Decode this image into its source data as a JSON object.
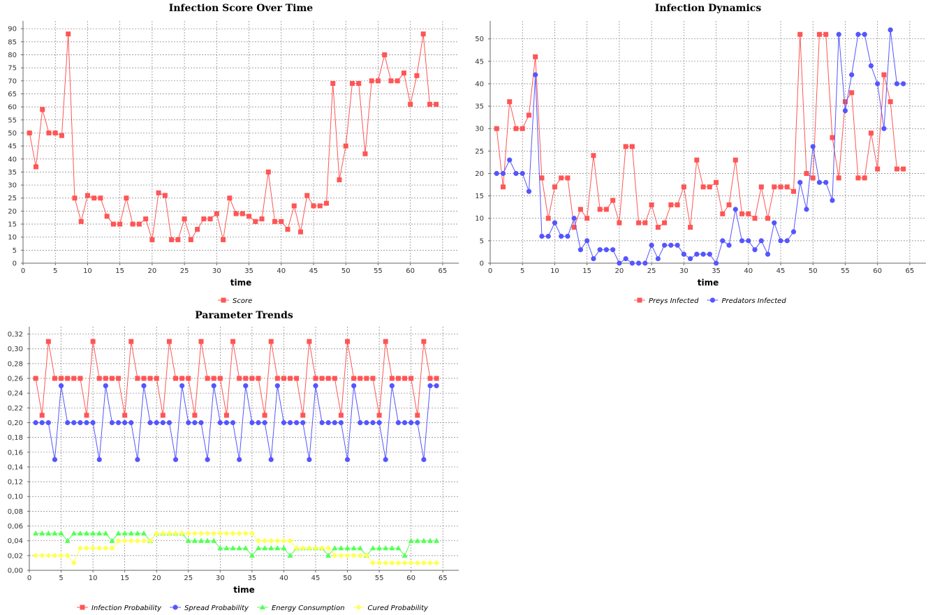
{
  "chart_data": [
    {
      "type": "line",
      "title": "Infection Score Over Time",
      "xlabel": "time",
      "ylabel": "",
      "xlim": [
        0,
        67.5
      ],
      "ylim": [
        0,
        93
      ],
      "xticks": [
        0,
        5,
        10,
        15,
        20,
        25,
        30,
        35,
        40,
        45,
        50,
        55,
        60,
        65
      ],
      "yticks": [
        0,
        5,
        10,
        15,
        20,
        25,
        30,
        35,
        40,
        45,
        50,
        55,
        60,
        65,
        70,
        75,
        80,
        85,
        90
      ],
      "y_decimals": 0,
      "grid": true,
      "legend": "bottom",
      "x": [
        1,
        2,
        3,
        4,
        5,
        6,
        7,
        8,
        9,
        10,
        11,
        12,
        13,
        14,
        15,
        16,
        17,
        18,
        19,
        20,
        21,
        22,
        23,
        24,
        25,
        26,
        27,
        28,
        29,
        30,
        31,
        32,
        33,
        34,
        35,
        36,
        37,
        38,
        39,
        40,
        41,
        42,
        43,
        44,
        45,
        46,
        47,
        48,
        49,
        50,
        51,
        52,
        53,
        54,
        55,
        56,
        57,
        58,
        59,
        60,
        61,
        62,
        63,
        64
      ],
      "series": [
        {
          "name": "Score",
          "color": "#FF5555",
          "marker": "square",
          "values": [
            50,
            37,
            59,
            50,
            50,
            49,
            88,
            25,
            16,
            26,
            25,
            25,
            18,
            15,
            15,
            25,
            15,
            15,
            17,
            9,
            27,
            26,
            9,
            9,
            17,
            9,
            13,
            17,
            17,
            19,
            9,
            25,
            19,
            19,
            18,
            16,
            17,
            35,
            16,
            16,
            13,
            22,
            12,
            26,
            22,
            22,
            23,
            69,
            32,
            45,
            69,
            69,
            42,
            70,
            70,
            80,
            70,
            70,
            73,
            61,
            72,
            88,
            61,
            61
          ]
        }
      ]
    },
    {
      "type": "line",
      "title": "Infection Dynamics",
      "xlabel": "time",
      "ylabel": "",
      "xlim": [
        0,
        67.5
      ],
      "ylim": [
        0,
        54
      ],
      "xticks": [
        0,
        5,
        10,
        15,
        20,
        25,
        30,
        35,
        40,
        45,
        50,
        55,
        60,
        65
      ],
      "yticks": [
        0,
        5,
        10,
        15,
        20,
        25,
        30,
        35,
        40,
        45,
        50
      ],
      "y_decimals": 0,
      "grid": true,
      "legend": "bottom",
      "x": [
        1,
        2,
        3,
        4,
        5,
        6,
        7,
        8,
        9,
        10,
        11,
        12,
        13,
        14,
        15,
        16,
        17,
        18,
        19,
        20,
        21,
        22,
        23,
        24,
        25,
        26,
        27,
        28,
        29,
        30,
        31,
        32,
        33,
        34,
        35,
        36,
        37,
        38,
        39,
        40,
        41,
        42,
        43,
        44,
        45,
        46,
        47,
        48,
        49,
        50,
        51,
        52,
        53,
        54,
        55,
        56,
        57,
        58,
        59,
        60,
        61,
        62,
        63,
        64
      ],
      "series": [
        {
          "name": "Preys Infected",
          "color": "#FF5555",
          "marker": "square",
          "values": [
            30,
            17,
            36,
            30,
            30,
            33,
            46,
            19,
            10,
            17,
            19,
            19,
            8,
            12,
            10,
            24,
            12,
            12,
            14,
            9,
            26,
            26,
            9,
            9,
            13,
            8,
            9,
            13,
            13,
            17,
            8,
            23,
            17,
            17,
            18,
            11,
            13,
            23,
            11,
            11,
            10,
            17,
            10,
            17,
            17,
            17,
            16,
            51,
            20,
            19,
            51,
            51,
            28,
            19,
            36,
            38,
            19,
            19,
            29,
            21,
            42,
            36,
            21,
            21
          ]
        },
        {
          "name": "Predators Infected",
          "color": "#5555FF",
          "marker": "circle",
          "values": [
            20,
            20,
            23,
            20,
            20,
            16,
            42,
            6,
            6,
            9,
            6,
            6,
            10,
            3,
            5,
            1,
            3,
            3,
            3,
            0,
            1,
            0,
            0,
            0,
            4,
            1,
            4,
            4,
            4,
            2,
            1,
            2,
            2,
            2,
            0,
            5,
            4,
            12,
            5,
            5,
            3,
            5,
            2,
            9,
            5,
            5,
            7,
            18,
            12,
            26,
            18,
            18,
            14,
            51,
            34,
            42,
            51,
            51,
            44,
            40,
            30,
            52,
            40,
            40
          ]
        }
      ]
    },
    {
      "type": "line",
      "title": "Parameter Trends",
      "xlabel": "time",
      "ylabel": "",
      "xlim": [
        0,
        67.5
      ],
      "ylim": [
        0,
        0.33
      ],
      "xticks": [
        0,
        5,
        10,
        15,
        20,
        25,
        30,
        35,
        40,
        45,
        50,
        55,
        60,
        65
      ],
      "yticks": [
        0,
        0.02,
        0.04,
        0.06,
        0.08,
        0.1,
        0.12,
        0.14,
        0.16,
        0.18,
        0.2,
        0.22,
        0.24,
        0.26,
        0.28,
        0.3,
        0.32
      ],
      "y_decimals": 2,
      "decimal_separator": ",",
      "grid": true,
      "legend": "bottom",
      "x": [
        1,
        2,
        3,
        4,
        5,
        6,
        7,
        8,
        9,
        10,
        11,
        12,
        13,
        14,
        15,
        16,
        17,
        18,
        19,
        20,
        21,
        22,
        23,
        24,
        25,
        26,
        27,
        28,
        29,
        30,
        31,
        32,
        33,
        34,
        35,
        36,
        37,
        38,
        39,
        40,
        41,
        42,
        43,
        44,
        45,
        46,
        47,
        48,
        49,
        50,
        51,
        52,
        53,
        54,
        55,
        56,
        57,
        58,
        59,
        60,
        61,
        62,
        63,
        64
      ],
      "series": [
        {
          "name": "Infection Probability",
          "color": "#FF5555",
          "marker": "square",
          "values": [
            0.26,
            0.21,
            0.31,
            0.26,
            0.26,
            0.26,
            0.26,
            0.26,
            0.21,
            0.31,
            0.26,
            0.26,
            0.26,
            0.26,
            0.21,
            0.31,
            0.26,
            0.26,
            0.26,
            0.26,
            0.21,
            0.31,
            0.26,
            0.26,
            0.26,
            0.21,
            0.31,
            0.26,
            0.26,
            0.26,
            0.21,
            0.31,
            0.26,
            0.26,
            0.26,
            0.26,
            0.21,
            0.31,
            0.26,
            0.26,
            0.26,
            0.26,
            0.21,
            0.31,
            0.26,
            0.26,
            0.26,
            0.26,
            0.21,
            0.31,
            0.26,
            0.26,
            0.26,
            0.26,
            0.21,
            0.31,
            0.26,
            0.26,
            0.26,
            0.26,
            0.21,
            0.31,
            0.26,
            0.26
          ]
        },
        {
          "name": "Spread Probability",
          "color": "#5555FF",
          "marker": "circle",
          "values": [
            0.2,
            0.2,
            0.2,
            0.15,
            0.25,
            0.2,
            0.2,
            0.2,
            0.2,
            0.2,
            0.15,
            0.25,
            0.2,
            0.2,
            0.2,
            0.2,
            0.15,
            0.25,
            0.2,
            0.2,
            0.2,
            0.2,
            0.15,
            0.25,
            0.2,
            0.2,
            0.2,
            0.15,
            0.25,
            0.2,
            0.2,
            0.2,
            0.15,
            0.25,
            0.2,
            0.2,
            0.2,
            0.15,
            0.25,
            0.2,
            0.2,
            0.2,
            0.2,
            0.15,
            0.25,
            0.2,
            0.2,
            0.2,
            0.2,
            0.15,
            0.25,
            0.2,
            0.2,
            0.2,
            0.2,
            0.15,
            0.25,
            0.2,
            0.2,
            0.2,
            0.2,
            0.15,
            0.25,
            0.25
          ]
        },
        {
          "name": "Energy Consumption",
          "color": "#55FF55",
          "marker": "triangle",
          "values": [
            0.05,
            0.05,
            0.05,
            0.05,
            0.05,
            0.04,
            0.05,
            0.05,
            0.05,
            0.05,
            0.05,
            0.05,
            0.04,
            0.05,
            0.05,
            0.05,
            0.05,
            0.05,
            0.04,
            0.05,
            0.05,
            0.05,
            0.05,
            0.05,
            0.04,
            0.04,
            0.04,
            0.04,
            0.04,
            0.03,
            0.03,
            0.03,
            0.03,
            0.03,
            0.02,
            0.03,
            0.03,
            0.03,
            0.03,
            0.03,
            0.02,
            0.03,
            0.03,
            0.03,
            0.03,
            0.03,
            0.02,
            0.03,
            0.03,
            0.03,
            0.03,
            0.03,
            0.02,
            0.03,
            0.03,
            0.03,
            0.03,
            0.03,
            0.02,
            0.04,
            0.04,
            0.04,
            0.04,
            0.04
          ]
        },
        {
          "name": "Cured Probability",
          "color": "#FFFF55",
          "marker": "diamond",
          "values": [
            0.02,
            0.02,
            0.02,
            0.02,
            0.02,
            0.02,
            0.01,
            0.03,
            0.03,
            0.03,
            0.03,
            0.03,
            0.03,
            0.04,
            0.04,
            0.04,
            0.04,
            0.04,
            0.04,
            0.05,
            0.05,
            0.05,
            0.05,
            0.05,
            0.05,
            0.05,
            0.05,
            0.05,
            0.05,
            0.05,
            0.05,
            0.05,
            0.05,
            0.05,
            0.05,
            0.04,
            0.04,
            0.04,
            0.04,
            0.04,
            0.04,
            0.03,
            0.03,
            0.03,
            0.03,
            0.03,
            0.03,
            0.02,
            0.02,
            0.02,
            0.02,
            0.02,
            0.02,
            0.01,
            0.01,
            0.01,
            0.01,
            0.01,
            0.01,
            0.01,
            0.01,
            0.01,
            0.01,
            0.01
          ]
        }
      ]
    }
  ]
}
